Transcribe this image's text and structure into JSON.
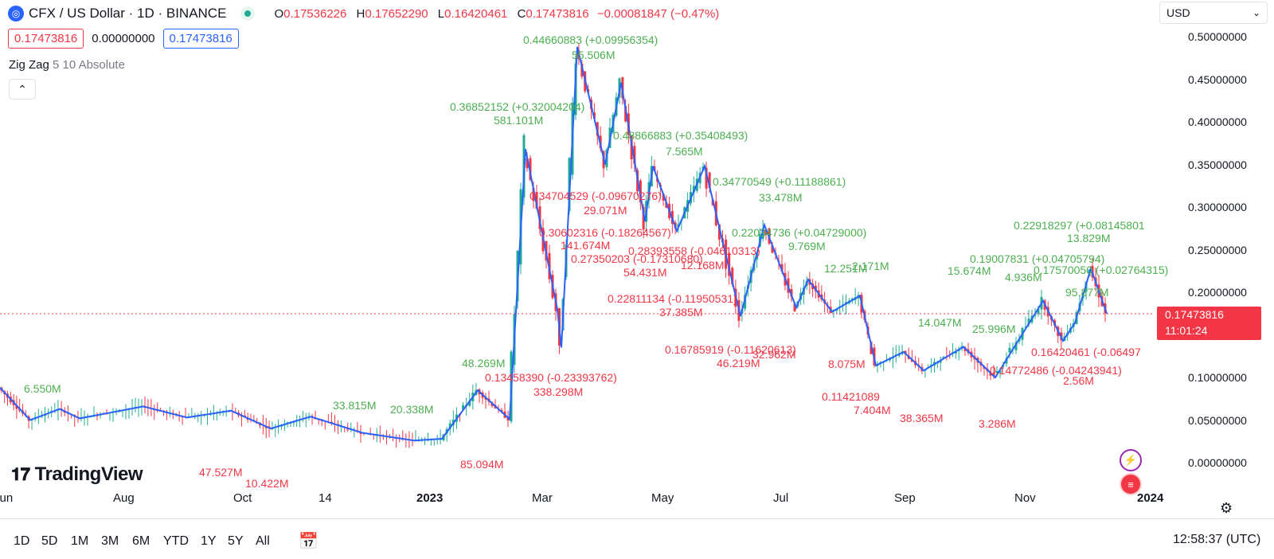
{
  "header": {
    "title": "CFX / US Dollar · 1D · BINANCE",
    "ohlc": [
      {
        "k": "O",
        "v": "0.17536226"
      },
      {
        "k": "H",
        "v": "0.17652290"
      },
      {
        "k": "L",
        "v": "0.16420461"
      },
      {
        "k": "C",
        "v": "0.17473816"
      }
    ],
    "change": "−0.00081847 (−0.47%)"
  },
  "price_boxes": {
    "sell": "0.17473816",
    "spread": "0.00000000",
    "buy": "0.17473816"
  },
  "indicator": {
    "name": "Zig Zag",
    "params": "5 10 Absolute"
  },
  "currency": "USD",
  "price_tag": {
    "price": "0.17473816",
    "countdown": "11:01:24"
  },
  "yaxis": [
    "0.50000000",
    "0.45000000",
    "0.40000000",
    "0.35000000",
    "0.30000000",
    "0.25000000",
    "0.20000000",
    "0.15000000",
    "0.10000000",
    "0.05000000",
    "0.00000000"
  ],
  "xaxis": [
    {
      "label": "Jun",
      "bold": false
    },
    {
      "label": "Aug",
      "bold": false
    },
    {
      "label": "Oct",
      "bold": false
    },
    {
      "label": "14",
      "bold": false
    },
    {
      "label": "2023",
      "bold": true
    },
    {
      "label": "Mar",
      "bold": false
    },
    {
      "label": "May",
      "bold": false
    },
    {
      "label": "Jul",
      "bold": false
    },
    {
      "label": "Sep",
      "bold": false
    },
    {
      "label": "Nov",
      "bold": false
    },
    {
      "label": "2024",
      "bold": true
    }
  ],
  "ranges": [
    "1D",
    "5D",
    "1M",
    "3M",
    "6M",
    "YTD",
    "1Y",
    "5Y",
    "All"
  ],
  "clock": "12:58:37 (UTC)",
  "branding": "TradingView",
  "colors": {
    "up": "#22ab94",
    "down": "#f23645",
    "zigzag": "#2962ff",
    "up_text": "#4caf50",
    "down_text": "#f23645"
  },
  "chart_data": {
    "type": "candlestick",
    "title": "CFX / US Dollar · 1D · BINANCE",
    "overlay": "Zig Zag",
    "ylim": [
      0,
      0.5
    ],
    "x_ticks": [
      "Jun",
      "Aug",
      "Oct",
      "14",
      "2023",
      "Mar",
      "May",
      "Jul",
      "Sep",
      "Nov",
      "2024"
    ],
    "zigzag": [
      {
        "x": "2022-06",
        "y": 0.088
      },
      {
        "x": "2022-06",
        "y": 0.05
      },
      {
        "x": "2022-07",
        "y": 0.063
      },
      {
        "x": "2022-07",
        "y": 0.052
      },
      {
        "x": "2022-08",
        "y": 0.066
      },
      {
        "x": "2022-09",
        "y": 0.053
      },
      {
        "x": "2022-10",
        "y": 0.061
      },
      {
        "x": "2022-10",
        "y": 0.04
      },
      {
        "x": "2022-11",
        "y": 0.054
      },
      {
        "x": "2022-12",
        "y": 0.035
      },
      {
        "x": "2022-12",
        "y": 0.026
      },
      {
        "x": "2023-01",
        "y": 0.028
      },
      {
        "x": "2023-02",
        "y": 0.085
      },
      {
        "x": "2023-02",
        "y": 0.051
      },
      {
        "x": "2023-02",
        "y": 0.368
      },
      {
        "x": "2023-02",
        "y": 0.18
      },
      {
        "x": "2023-02",
        "y": 0.135
      },
      {
        "x": "2023-03",
        "y": 0.488
      },
      {
        "x": "2023-03",
        "y": 0.35
      },
      {
        "x": "2023-04",
        "y": 0.446
      },
      {
        "x": "2023-04",
        "y": 0.283
      },
      {
        "x": "2023-04",
        "y": 0.348
      },
      {
        "x": "2023-05",
        "y": 0.272
      },
      {
        "x": "2023-05",
        "y": 0.348
      },
      {
        "x": "2023-06",
        "y": 0.172
      },
      {
        "x": "2023-06",
        "y": 0.279
      },
      {
        "x": "2023-07",
        "y": 0.182
      },
      {
        "x": "2023-07",
        "y": 0.215
      },
      {
        "x": "2023-07",
        "y": 0.177
      },
      {
        "x": "2023-08",
        "y": 0.196
      },
      {
        "x": "2023-08",
        "y": 0.114
      },
      {
        "x": "2023-09",
        "y": 0.13
      },
      {
        "x": "2023-09",
        "y": 0.108
      },
      {
        "x": "2023-10",
        "y": 0.136
      },
      {
        "x": "2023-10",
        "y": 0.1
      },
      {
        "x": "2023-11",
        "y": 0.19
      },
      {
        "x": "2023-11",
        "y": 0.143
      },
      {
        "x": "2023-11",
        "y": 0.164
      },
      {
        "x": "2023-12",
        "y": 0.228
      },
      {
        "x": "2023-12",
        "y": 0.175
      }
    ],
    "last_close": 0.17473816
  },
  "annotations": {
    "green": [
      "0.36852152 (+0.32004204)",
      "581.101M",
      "0.44660883 (+0.09956354)",
      "55.506M",
      "0.34770549 (+0.11188861)",
      "33.478M",
      "0.22034736 (+0.04729000)",
      "9.769M",
      "0.22918297 (+0.08145801",
      "13.829M",
      "0.19007831 (+0.04705794)",
      "0.17570050 (+0.02764315)",
      "15.674M",
      "4.936M",
      "7.565M",
      "12.251M",
      "2.171M",
      "14.047M",
      "25.996M",
      "95.877M",
      "20.338M",
      "33.815M",
      "6.550M",
      "48.269M",
      "0.48866883 (+0.35408493)"
    ],
    "red": [
      "0.34704529 (-0.09670276)",
      "29.071M",
      "0.30602316 (-0.18264567)",
      "141.674M",
      "0.27350203 (-0.17310680)",
      "54.431M",
      "0.28393558 (-0.04610313)",
      "12.168M",
      "0.22811134 (-0.11950531)",
      "37.385M",
      "0.16785919 (-0.11620613)",
      "46.219M",
      "0.13458390 (-0.23393762)",
      "338.298M",
      "0.16420461 (-0.06497",
      "0.11421089",
      "7.404M",
      "38.365M",
      "3.286M",
      "85.094M",
      "10.422M",
      "47.527M",
      "32.962M",
      "8.075M",
      "0.14772486 (-0.04243941)",
      "2.56M"
    ]
  }
}
